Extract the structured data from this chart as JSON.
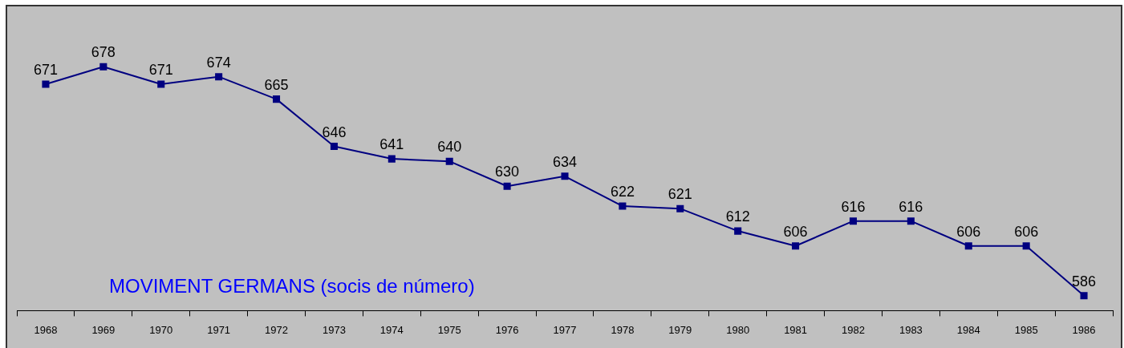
{
  "chart_data": {
    "type": "line",
    "title": "MOVIMENT GERMANS (socis de número)",
    "categories": [
      "1968",
      "1969",
      "1970",
      "1971",
      "1972",
      "1973",
      "1974",
      "1975",
      "1976",
      "1977",
      "1978",
      "1979",
      "1980",
      "1981",
      "1982",
      "1983",
      "1984",
      "1985",
      "1986"
    ],
    "series": [
      {
        "color": "#000080",
        "values": [
          671,
          678,
          671,
          674,
          665,
          646,
          641,
          640,
          630,
          634,
          622,
          621,
          612,
          606,
          616,
          616,
          606,
          606,
          586
        ]
      }
    ],
    "data_labels": true,
    "marker": "square",
    "line_style": "solid",
    "grid": false,
    "legend": false
  }
}
